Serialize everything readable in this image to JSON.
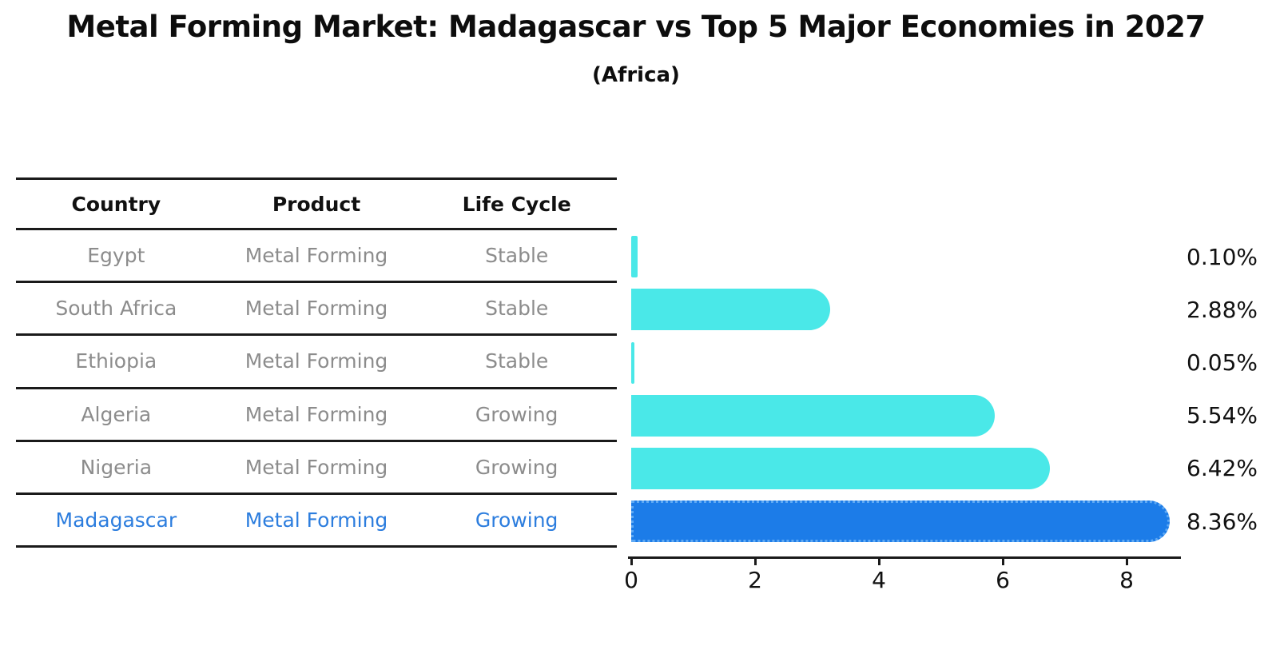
{
  "title": "Metal Forming Market: Madagascar vs Top 5 Major Economies in 2027",
  "subtitle": "(Africa)",
  "table": {
    "headers": [
      "Country",
      "Product",
      "Life Cycle"
    ],
    "rows": [
      {
        "country": "Egypt",
        "product": "Metal Forming",
        "life_cycle": "Stable",
        "highlight": false
      },
      {
        "country": "South Africa",
        "product": "Metal Forming",
        "life_cycle": "Stable",
        "highlight": false
      },
      {
        "country": "Ethiopia",
        "product": "Metal Forming",
        "life_cycle": "Stable",
        "highlight": false
      },
      {
        "country": "Algeria",
        "product": "Metal Forming",
        "life_cycle": "Growing",
        "highlight": false
      },
      {
        "country": "Nigeria",
        "product": "Metal Forming",
        "life_cycle": "Growing",
        "highlight": false
      },
      {
        "country": "Madagascar",
        "product": "Metal Forming",
        "life_cycle": "Growing",
        "highlight": true
      }
    ]
  },
  "chart_data": {
    "type": "bar",
    "orientation": "horizontal",
    "title": "Metal Forming Market: Madagascar vs Top 5 Major Economies in 2027",
    "subtitle": "(Africa)",
    "categories": [
      "Egypt",
      "South Africa",
      "Ethiopia",
      "Algeria",
      "Nigeria",
      "Madagascar"
    ],
    "values": [
      0.1,
      2.88,
      0.05,
      5.54,
      6.42,
      8.36
    ],
    "value_labels": [
      "0.10%",
      "2.88%",
      "0.05%",
      "5.54%",
      "6.42%",
      "8.36%"
    ],
    "x_ticks": [
      0,
      2,
      4,
      6,
      8
    ],
    "x_tick_labels": [
      "0",
      "2",
      "4",
      "6",
      "8"
    ],
    "xlim": [
      0,
      8.85
    ],
    "grid": false,
    "legend": null,
    "highlight_index": 5,
    "bar_color": "#4ae8e8",
    "highlight_bar_color": "#1c7ce8"
  },
  "colors": {
    "background": "#ffffff",
    "bar": "#4ae8e8",
    "highlight_bar": "#1c7ce8",
    "highlight_border": "#5fa9f3",
    "highlight_text": "#2c7dde",
    "table_text": "#8c8c8c",
    "header_text": "#111111",
    "rule": "#1a1a1a",
    "value_text": "#111111"
  }
}
